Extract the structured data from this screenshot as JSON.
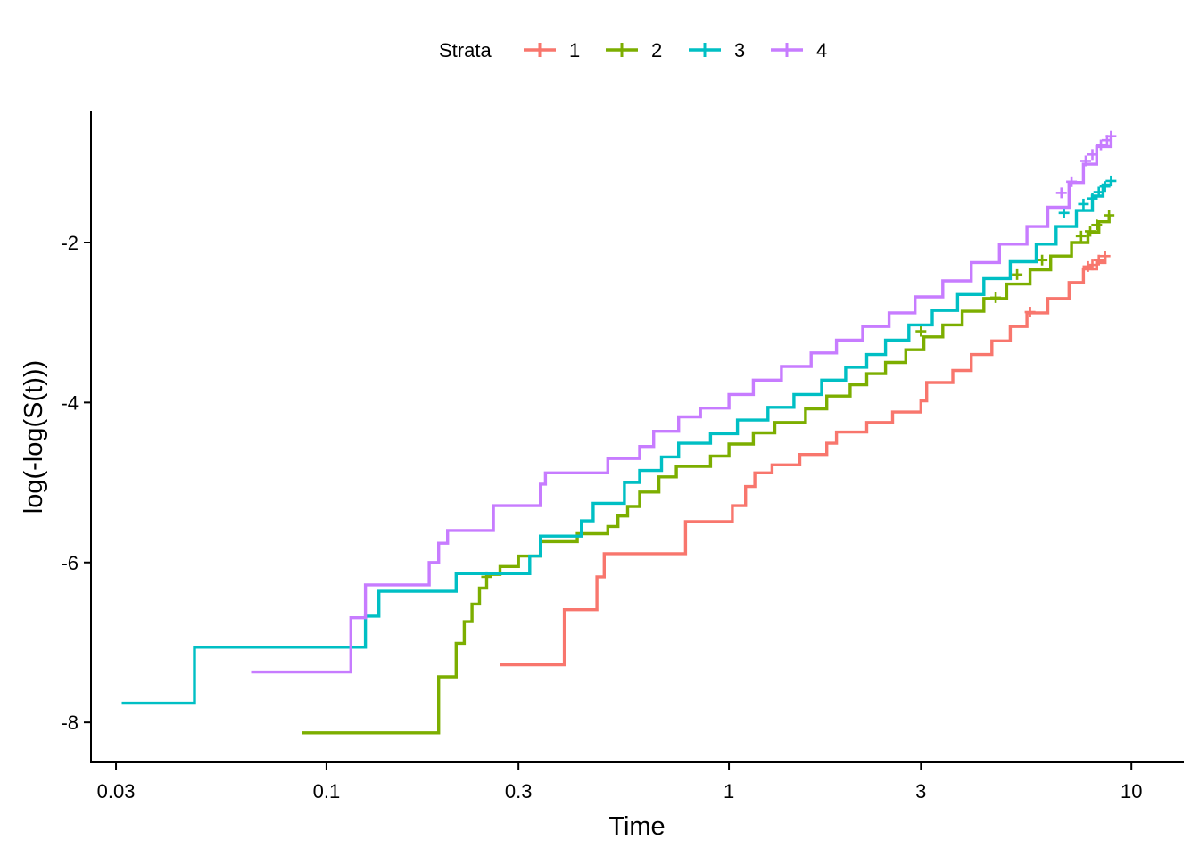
{
  "chart_data": {
    "type": "line",
    "step": true,
    "xscale": "log",
    "xlabel": "Time",
    "ylabel": "log(-log(S(t)))",
    "xlim": [
      0.026,
      13.5
    ],
    "ylim": [
      -8.5,
      -0.35
    ],
    "xticks": [
      {
        "value": 0.03,
        "label": "0.03"
      },
      {
        "value": 0.1,
        "label": "0.1"
      },
      {
        "value": 0.3,
        "label": "0.3"
      },
      {
        "value": 1,
        "label": "1"
      },
      {
        "value": 3,
        "label": "3"
      },
      {
        "value": 10,
        "label": "10"
      }
    ],
    "yticks": [
      {
        "value": -8,
        "label": "-8"
      },
      {
        "value": -6,
        "label": "-6"
      },
      {
        "value": -4,
        "label": "-4"
      },
      {
        "value": -2,
        "label": "-2"
      }
    ],
    "grid": false,
    "legend": {
      "title": "Strata",
      "position": "top"
    },
    "series": [
      {
        "name": "1",
        "color": "#F8766D",
        "points": [
          [
            0.27,
            -7.28
          ],
          [
            0.39,
            -7.28
          ],
          [
            0.39,
            -6.59
          ],
          [
            0.47,
            -6.59
          ],
          [
            0.47,
            -6.18
          ],
          [
            0.49,
            -6.18
          ],
          [
            0.49,
            -5.89
          ],
          [
            0.78,
            -5.89
          ],
          [
            0.78,
            -5.49
          ],
          [
            1.02,
            -5.49
          ],
          [
            1.02,
            -5.29
          ],
          [
            1.1,
            -5.29
          ],
          [
            1.1,
            -5.05
          ],
          [
            1.16,
            -5.05
          ],
          [
            1.16,
            -4.88
          ],
          [
            1.28,
            -4.88
          ],
          [
            1.28,
            -4.78
          ],
          [
            1.5,
            -4.78
          ],
          [
            1.5,
            -4.65
          ],
          [
            1.75,
            -4.65
          ],
          [
            1.75,
            -4.51
          ],
          [
            1.85,
            -4.51
          ],
          [
            1.85,
            -4.37
          ],
          [
            2.2,
            -4.37
          ],
          [
            2.2,
            -4.25
          ],
          [
            2.55,
            -4.25
          ],
          [
            2.55,
            -4.12
          ],
          [
            3.0,
            -4.12
          ],
          [
            3.0,
            -3.98
          ],
          [
            3.1,
            -3.98
          ],
          [
            3.1,
            -3.75
          ],
          [
            3.6,
            -3.75
          ],
          [
            3.6,
            -3.6
          ],
          [
            4.0,
            -3.6
          ],
          [
            4.0,
            -3.4
          ],
          [
            4.5,
            -3.4
          ],
          [
            4.5,
            -3.23
          ],
          [
            5.0,
            -3.23
          ],
          [
            5.0,
            -3.05
          ],
          [
            5.5,
            -3.05
          ],
          [
            5.5,
            -2.88
          ],
          [
            6.2,
            -2.88
          ],
          [
            6.2,
            -2.7
          ],
          [
            7.0,
            -2.7
          ],
          [
            7.0,
            -2.5
          ],
          [
            7.6,
            -2.5
          ],
          [
            7.6,
            -2.33
          ],
          [
            8.2,
            -2.33
          ],
          [
            8.2,
            -2.25
          ],
          [
            8.6,
            -2.25
          ],
          [
            8.6,
            -2.17
          ]
        ],
        "censor": [
          [
            5.6,
            -2.87
          ],
          [
            7.8,
            -2.3
          ],
          [
            8.0,
            -2.28
          ],
          [
            8.3,
            -2.22
          ],
          [
            8.6,
            -2.17
          ]
        ]
      },
      {
        "name": "2",
        "color": "#7CAE00",
        "points": [
          [
            0.087,
            -8.13
          ],
          [
            0.19,
            -8.13
          ],
          [
            0.19,
            -7.43
          ],
          [
            0.21,
            -7.43
          ],
          [
            0.21,
            -7.01
          ],
          [
            0.22,
            -7.01
          ],
          [
            0.22,
            -6.74
          ],
          [
            0.23,
            -6.74
          ],
          [
            0.23,
            -6.52
          ],
          [
            0.24,
            -6.52
          ],
          [
            0.24,
            -6.32
          ],
          [
            0.25,
            -6.32
          ],
          [
            0.25,
            -6.15
          ],
          [
            0.27,
            -6.15
          ],
          [
            0.27,
            -6.05
          ],
          [
            0.3,
            -6.05
          ],
          [
            0.3,
            -5.92
          ],
          [
            0.34,
            -5.92
          ],
          [
            0.34,
            -5.74
          ],
          [
            0.42,
            -5.74
          ],
          [
            0.42,
            -5.64
          ],
          [
            0.5,
            -5.64
          ],
          [
            0.5,
            -5.55
          ],
          [
            0.53,
            -5.55
          ],
          [
            0.53,
            -5.42
          ],
          [
            0.56,
            -5.42
          ],
          [
            0.56,
            -5.3
          ],
          [
            0.6,
            -5.3
          ],
          [
            0.6,
            -5.12
          ],
          [
            0.67,
            -5.12
          ],
          [
            0.67,
            -4.93
          ],
          [
            0.74,
            -4.93
          ],
          [
            0.74,
            -4.8
          ],
          [
            0.9,
            -4.8
          ],
          [
            0.9,
            -4.67
          ],
          [
            1.0,
            -4.67
          ],
          [
            1.0,
            -4.52
          ],
          [
            1.15,
            -4.52
          ],
          [
            1.15,
            -4.38
          ],
          [
            1.3,
            -4.38
          ],
          [
            1.3,
            -4.25
          ],
          [
            1.55,
            -4.25
          ],
          [
            1.55,
            -4.08
          ],
          [
            1.75,
            -4.08
          ],
          [
            1.75,
            -3.92
          ],
          [
            2.0,
            -3.92
          ],
          [
            2.0,
            -3.78
          ],
          [
            2.2,
            -3.78
          ],
          [
            2.2,
            -3.64
          ],
          [
            2.45,
            -3.64
          ],
          [
            2.45,
            -3.5
          ],
          [
            2.75,
            -3.5
          ],
          [
            2.75,
            -3.34
          ],
          [
            3.05,
            -3.34
          ],
          [
            3.05,
            -3.18
          ],
          [
            3.4,
            -3.18
          ],
          [
            3.4,
            -3.03
          ],
          [
            3.8,
            -3.03
          ],
          [
            3.8,
            -2.86
          ],
          [
            4.3,
            -2.86
          ],
          [
            4.3,
            -2.7
          ],
          [
            4.9,
            -2.7
          ],
          [
            4.9,
            -2.52
          ],
          [
            5.6,
            -2.52
          ],
          [
            5.6,
            -2.34
          ],
          [
            6.3,
            -2.34
          ],
          [
            6.3,
            -2.17
          ],
          [
            7.1,
            -2.17
          ],
          [
            7.1,
            -2.0
          ],
          [
            7.8,
            -2.0
          ],
          [
            7.8,
            -1.87
          ],
          [
            8.3,
            -1.87
          ],
          [
            8.3,
            -1.74
          ],
          [
            8.8,
            -1.74
          ],
          [
            8.8,
            -1.66
          ]
        ],
        "censor": [
          [
            0.25,
            -6.18
          ],
          [
            3.0,
            -3.11
          ],
          [
            4.6,
            -2.69
          ],
          [
            5.2,
            -2.4
          ],
          [
            6.0,
            -2.22
          ],
          [
            7.5,
            -1.92
          ],
          [
            7.9,
            -1.86
          ],
          [
            8.2,
            -1.78
          ],
          [
            8.8,
            -1.66
          ]
        ]
      },
      {
        "name": "3",
        "color": "#00BFC4",
        "points": [
          [
            0.031,
            -7.76
          ],
          [
            0.047,
            -7.76
          ],
          [
            0.047,
            -7.06
          ],
          [
            0.125,
            -7.06
          ],
          [
            0.125,
            -6.67
          ],
          [
            0.135,
            -6.67
          ],
          [
            0.135,
            -6.36
          ],
          [
            0.21,
            -6.36
          ],
          [
            0.21,
            -6.14
          ],
          [
            0.32,
            -6.14
          ],
          [
            0.32,
            -5.92
          ],
          [
            0.34,
            -5.92
          ],
          [
            0.34,
            -5.67
          ],
          [
            0.43,
            -5.67
          ],
          [
            0.43,
            -5.48
          ],
          [
            0.46,
            -5.48
          ],
          [
            0.46,
            -5.26
          ],
          [
            0.55,
            -5.26
          ],
          [
            0.55,
            -5.0
          ],
          [
            0.6,
            -5.0
          ],
          [
            0.6,
            -4.85
          ],
          [
            0.68,
            -4.85
          ],
          [
            0.68,
            -4.68
          ],
          [
            0.75,
            -4.68
          ],
          [
            0.75,
            -4.51
          ],
          [
            0.9,
            -4.51
          ],
          [
            0.9,
            -4.39
          ],
          [
            1.05,
            -4.39
          ],
          [
            1.05,
            -4.22
          ],
          [
            1.25,
            -4.22
          ],
          [
            1.25,
            -4.06
          ],
          [
            1.45,
            -4.06
          ],
          [
            1.45,
            -3.9
          ],
          [
            1.7,
            -3.9
          ],
          [
            1.7,
            -3.72
          ],
          [
            1.95,
            -3.72
          ],
          [
            1.95,
            -3.56
          ],
          [
            2.2,
            -3.56
          ],
          [
            2.2,
            -3.4
          ],
          [
            2.45,
            -3.4
          ],
          [
            2.45,
            -3.22
          ],
          [
            2.8,
            -3.22
          ],
          [
            2.8,
            -3.03
          ],
          [
            3.2,
            -3.03
          ],
          [
            3.2,
            -2.85
          ],
          [
            3.7,
            -2.85
          ],
          [
            3.7,
            -2.65
          ],
          [
            4.3,
            -2.65
          ],
          [
            4.3,
            -2.45
          ],
          [
            5.0,
            -2.45
          ],
          [
            5.0,
            -2.24
          ],
          [
            5.8,
            -2.24
          ],
          [
            5.8,
            -2.02
          ],
          [
            6.5,
            -2.02
          ],
          [
            6.5,
            -1.8
          ],
          [
            7.3,
            -1.8
          ],
          [
            7.3,
            -1.6
          ],
          [
            8.0,
            -1.6
          ],
          [
            8.0,
            -1.42
          ],
          [
            8.5,
            -1.42
          ],
          [
            8.5,
            -1.28
          ],
          [
            8.9,
            -1.28
          ],
          [
            8.9,
            -1.23
          ]
        ],
        "censor": [
          [
            6.8,
            -1.63
          ],
          [
            7.6,
            -1.52
          ],
          [
            8.0,
            -1.45
          ],
          [
            8.3,
            -1.37
          ],
          [
            8.6,
            -1.3
          ],
          [
            8.9,
            -1.23
          ]
        ]
      },
      {
        "name": "4",
        "color": "#C77CFF",
        "points": [
          [
            0.065,
            -7.37
          ],
          [
            0.115,
            -7.37
          ],
          [
            0.115,
            -6.69
          ],
          [
            0.125,
            -6.69
          ],
          [
            0.125,
            -6.28
          ],
          [
            0.18,
            -6.28
          ],
          [
            0.18,
            -6.0
          ],
          [
            0.19,
            -6.0
          ],
          [
            0.19,
            -5.76
          ],
          [
            0.2,
            -5.76
          ],
          [
            0.2,
            -5.6
          ],
          [
            0.26,
            -5.6
          ],
          [
            0.26,
            -5.29
          ],
          [
            0.34,
            -5.29
          ],
          [
            0.34,
            -5.02
          ],
          [
            0.35,
            -5.02
          ],
          [
            0.35,
            -4.88
          ],
          [
            0.5,
            -4.88
          ],
          [
            0.5,
            -4.7
          ],
          [
            0.6,
            -4.7
          ],
          [
            0.6,
            -4.55
          ],
          [
            0.65,
            -4.55
          ],
          [
            0.65,
            -4.36
          ],
          [
            0.75,
            -4.36
          ],
          [
            0.75,
            -4.18
          ],
          [
            0.85,
            -4.18
          ],
          [
            0.85,
            -4.07
          ],
          [
            1.0,
            -4.07
          ],
          [
            1.0,
            -3.9
          ],
          [
            1.15,
            -3.9
          ],
          [
            1.15,
            -3.72
          ],
          [
            1.35,
            -3.72
          ],
          [
            1.35,
            -3.55
          ],
          [
            1.6,
            -3.55
          ],
          [
            1.6,
            -3.38
          ],
          [
            1.85,
            -3.38
          ],
          [
            1.85,
            -3.22
          ],
          [
            2.15,
            -3.22
          ],
          [
            2.15,
            -3.05
          ],
          [
            2.5,
            -3.05
          ],
          [
            2.5,
            -2.88
          ],
          [
            2.9,
            -2.88
          ],
          [
            2.9,
            -2.68
          ],
          [
            3.4,
            -2.68
          ],
          [
            3.4,
            -2.48
          ],
          [
            4.0,
            -2.48
          ],
          [
            4.0,
            -2.25
          ],
          [
            4.7,
            -2.25
          ],
          [
            4.7,
            -2.02
          ],
          [
            5.5,
            -2.02
          ],
          [
            5.5,
            -1.8
          ],
          [
            6.2,
            -1.8
          ],
          [
            6.2,
            -1.56
          ],
          [
            7.0,
            -1.56
          ],
          [
            7.0,
            -1.25
          ],
          [
            7.6,
            -1.25
          ],
          [
            7.6,
            -1.02
          ],
          [
            8.2,
            -1.02
          ],
          [
            8.2,
            -0.8
          ],
          [
            8.9,
            -0.8
          ],
          [
            8.9,
            -0.67
          ]
        ],
        "censor": [
          [
            6.7,
            -1.38
          ],
          [
            7.1,
            -1.24
          ],
          [
            7.7,
            -0.98
          ],
          [
            8.0,
            -0.9
          ],
          [
            8.4,
            -0.78
          ],
          [
            8.7,
            -0.72
          ],
          [
            8.9,
            -0.67
          ]
        ]
      }
    ]
  }
}
